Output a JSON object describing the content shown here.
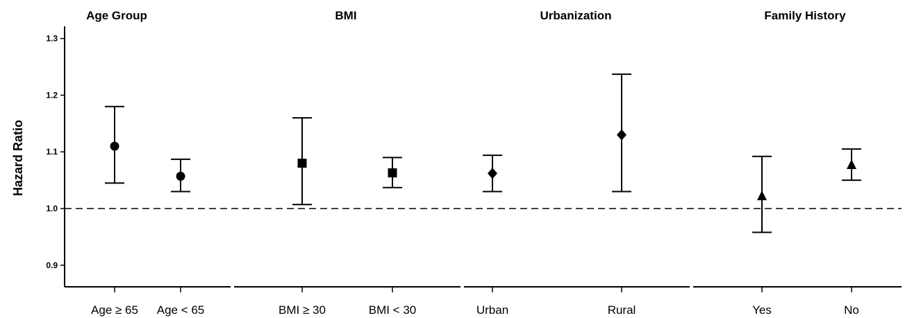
{
  "chart_data": {
    "type": "scatter",
    "ylabel": "Hazard Ratio",
    "ylim": [
      0.86,
      1.32
    ],
    "y_ticks": [
      "0.9",
      "1.0",
      "1.1",
      "1.2",
      "1.3"
    ],
    "reference_line": 1.0,
    "groups": [
      {
        "title": "Age Group",
        "marker": "circle",
        "points": [
          {
            "label": "Age ≥ 65",
            "hr": 1.11,
            "lower": 1.045,
            "upper": 1.18
          },
          {
            "label": "Age < 65",
            "hr": 1.057,
            "lower": 1.03,
            "upper": 1.087
          }
        ]
      },
      {
        "title": "BMI",
        "marker": "square",
        "points": [
          {
            "label": "BMI ≥ 30",
            "hr": 1.08,
            "lower": 1.007,
            "upper": 1.16
          },
          {
            "label": "BMI < 30",
            "hr": 1.063,
            "lower": 1.037,
            "upper": 1.09
          }
        ]
      },
      {
        "title": "Urbanization",
        "marker": "diamond",
        "points": [
          {
            "label": "Urban",
            "hr": 1.062,
            "lower": 1.03,
            "upper": 1.094
          },
          {
            "label": "Rural",
            "hr": 1.13,
            "lower": 1.03,
            "upper": 1.237
          }
        ]
      },
      {
        "title": "Family History",
        "marker": "triangle",
        "points": [
          {
            "label": "Yes",
            "hr": 1.022,
            "lower": 0.958,
            "upper": 1.092
          },
          {
            "label": "No",
            "hr": 1.077,
            "lower": 1.05,
            "upper": 1.105
          }
        ]
      }
    ]
  }
}
